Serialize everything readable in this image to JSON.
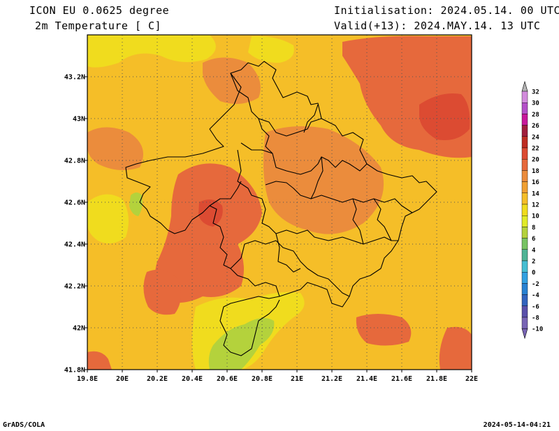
{
  "header": {
    "model": "ICON EU 0.0625 degree",
    "variable": "2m Temperature [ C]",
    "init": "Initialisation: 2024.05.14. 00 UTC",
    "valid": "Valid(+13): 2024.MAY.14. 13 UTC"
  },
  "footer": {
    "left": "GrADS/COLA",
    "right": "2024-05-14-04:21"
  },
  "map": {
    "lon_ticks": [
      "19.8E",
      "20E",
      "20.2E",
      "20.4E",
      "20.6E",
      "20.8E",
      "21E",
      "21.2E",
      "21.4E",
      "21.6E",
      "21.8E",
      "22E"
    ],
    "lat_ticks": [
      "41.8N",
      "42N",
      "42.2N",
      "42.4N",
      "42.6N",
      "42.8N",
      "43N",
      "43.2N"
    ],
    "lon_range": [
      19.8,
      22.0
    ],
    "lat_range": [
      41.8,
      43.4
    ]
  },
  "colorbar": {
    "levels": [
      "32",
      "30",
      "28",
      "26",
      "24",
      "22",
      "20",
      "18",
      "16",
      "14",
      "12",
      "10",
      "8",
      "6",
      "4",
      "2",
      "0",
      "-2",
      "-4",
      "-6",
      "-8",
      "-10"
    ],
    "colors": [
      "#e6b4f0",
      "#d28cdc",
      "#b450c8",
      "#c8189b",
      "#a01e3c",
      "#be2d23",
      "#dc4b32",
      "#e6693c",
      "#eb8c3c",
      "#f0a032",
      "#f5be28",
      "#f0dc1e",
      "#e1eb28",
      "#b4d23c",
      "#78c364",
      "#50b496",
      "#46bed2",
      "#32a0e1",
      "#2882d2",
      "#3264be",
      "#5a50aa",
      "#7864b4"
    ]
  },
  "field_colors": {
    "yellow": "#f0dc1e",
    "light_orange": "#f5be28",
    "orange": "#f0a032",
    "dark_orange": "#eb8c3c",
    "red_orange": "#e6693c",
    "red": "#dc4b32",
    "green": "#b4d23c",
    "lime": "#e1eb28"
  }
}
